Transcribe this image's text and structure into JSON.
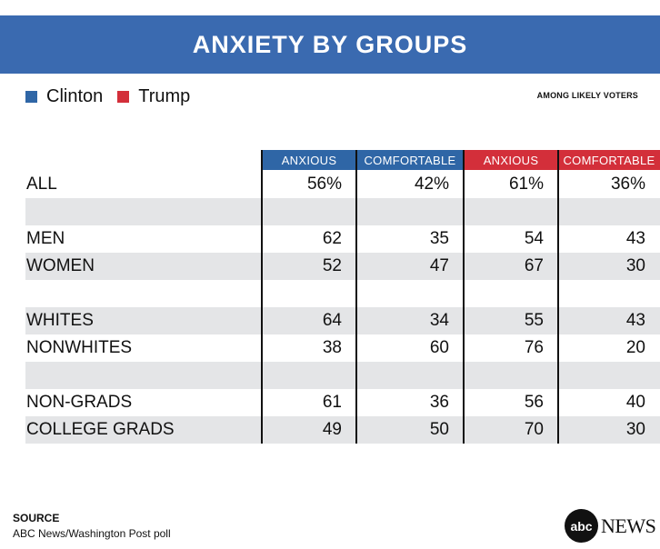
{
  "title": "ANXIETY BY GROUPS",
  "legend": [
    {
      "label": "Clinton",
      "color": "#2f66a6"
    },
    {
      "label": "Trump",
      "color": "#d32f3a"
    }
  ],
  "note": "AMONG LIKELY VOTERS",
  "chart_data": {
    "type": "table",
    "title": "ANXIETY BY GROUPS",
    "columns": [
      {
        "label": "ANXIOUS",
        "candidate": "Clinton",
        "color": "#2f66a6"
      },
      {
        "label": "COMFORTABLE",
        "candidate": "Clinton",
        "color": "#2f66a6"
      },
      {
        "label": "ANXIOUS",
        "candidate": "Trump",
        "color": "#d32f3a"
      },
      {
        "label": "COMFORTABLE",
        "candidate": "Trump",
        "color": "#d32f3a"
      }
    ],
    "rows": [
      {
        "label": "ALL",
        "values": [
          "56%",
          "42%",
          "61%",
          "36%"
        ]
      },
      {
        "label": "",
        "values": [
          "",
          "",
          "",
          ""
        ]
      },
      {
        "label": "MEN",
        "values": [
          "62",
          "35",
          "54",
          "43"
        ]
      },
      {
        "label": "WOMEN",
        "values": [
          "52",
          "47",
          "67",
          "30"
        ]
      },
      {
        "label": "",
        "values": [
          "",
          "",
          "",
          ""
        ]
      },
      {
        "label": "WHITES",
        "values": [
          "64",
          "34",
          "55",
          "43"
        ]
      },
      {
        "label": "NONWHITES",
        "values": [
          "38",
          "60",
          "76",
          "20"
        ]
      },
      {
        "label": "",
        "values": [
          "",
          "",
          "",
          ""
        ]
      },
      {
        "label": "NON-GRADS",
        "values": [
          "61",
          "36",
          "56",
          "40"
        ]
      },
      {
        "label": "COLLEGE GRADS",
        "values": [
          "49",
          "50",
          "70",
          "30"
        ]
      }
    ]
  },
  "source": {
    "title": "SOURCE",
    "text": "ABC News/Washington Post poll"
  },
  "logo": {
    "mark": "abc",
    "text": "NEWS"
  }
}
